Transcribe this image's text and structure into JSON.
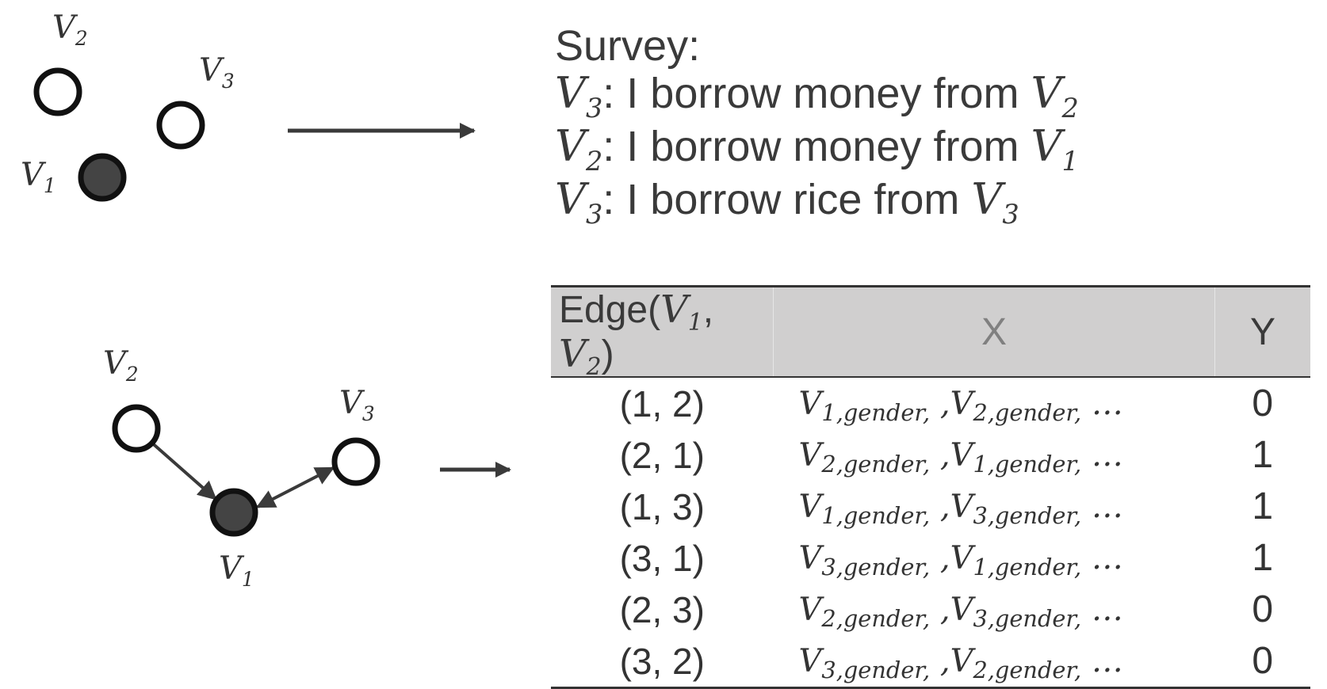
{
  "network_top": {
    "nodes": [
      {
        "id": "v2",
        "label": "V",
        "sub": "2",
        "filled": false
      },
      {
        "id": "v3",
        "label": "V",
        "sub": "3",
        "filled": false
      },
      {
        "id": "v1",
        "label": "V",
        "sub": "1",
        "filled": true
      }
    ]
  },
  "survey": {
    "title": "Survey:",
    "lines": [
      {
        "subject": "V",
        "subject_sub": "3",
        "text": ": I borrow money from ",
        "object": "V",
        "object_sub": "2"
      },
      {
        "subject": "V",
        "subject_sub": "2",
        "text": ": I borrow money from ",
        "object": "V",
        "object_sub": "1"
      },
      {
        "subject": "V",
        "subject_sub": "3",
        "text": ": I borrow rice from ",
        "object": "V",
        "object_sub": "3"
      }
    ]
  },
  "network_bottom": {
    "nodes": [
      {
        "id": "v2",
        "label": "V",
        "sub": "2",
        "filled": false
      },
      {
        "id": "v3",
        "label": "V",
        "sub": "3",
        "filled": false
      },
      {
        "id": "v1",
        "label": "V",
        "sub": "1",
        "filled": true
      }
    ]
  },
  "table": {
    "headers": {
      "edge_prefix": "Edge(",
      "edge_a": "V",
      "edge_a_sub": "1",
      "edge_sep": ", ",
      "edge_b": "V",
      "edge_b_sub": "2",
      "edge_suffix": ")",
      "x": "X",
      "y": "Y"
    },
    "rows": [
      {
        "edge": "(1, 2)",
        "xa": "1",
        "xb": "2",
        "y": "0"
      },
      {
        "edge": "(2, 1)",
        "xa": "2",
        "xb": "1",
        "y": "1"
      },
      {
        "edge": "(1, 3)",
        "xa": "1",
        "xb": "3",
        "y": "1"
      },
      {
        "edge": "(3, 1)",
        "xa": "3",
        "xb": "1",
        "y": "1"
      },
      {
        "edge": "(2, 3)",
        "xa": "2",
        "xb": "3",
        "y": "0"
      },
      {
        "edge": "(3, 2)",
        "xa": "3",
        "xb": "2",
        "y": "0"
      }
    ],
    "x_var": "V",
    "x_attr": ",gender,",
    "x_sep": " ,",
    "x_ellipsis": "…"
  },
  "colors": {
    "node_stroke": "#111111",
    "node_fill_active": "#444444",
    "arrow": "#3a3a3a",
    "header_bg": "#d0cfcf"
  }
}
